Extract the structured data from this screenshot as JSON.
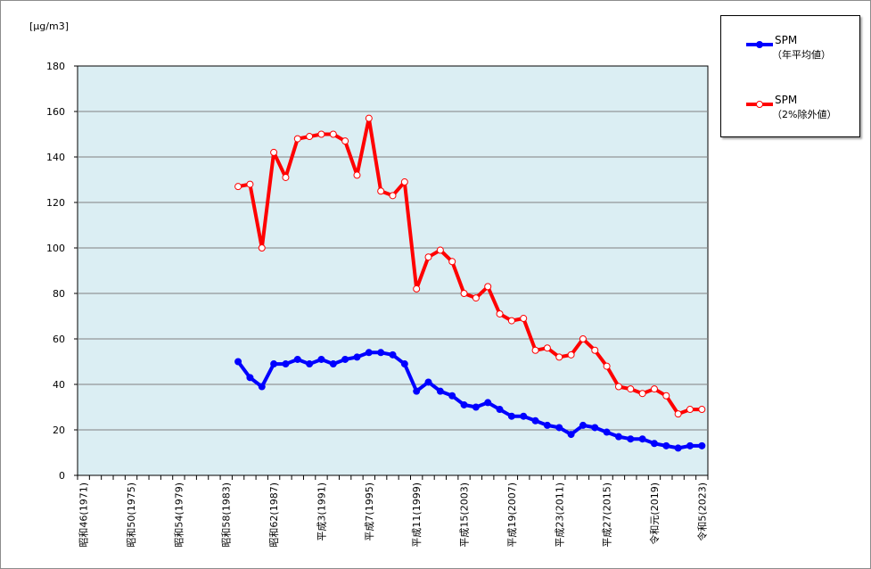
{
  "chart_data": {
    "type": "line",
    "unit_label": "[µg/m3]",
    "ylim": [
      0,
      180
    ],
    "y_ticks": [
      0,
      20,
      40,
      60,
      80,
      100,
      120,
      140,
      160,
      180
    ],
    "grid": true,
    "legend_position": "top-right",
    "x_start_year": 1971,
    "x_end_year": 2023,
    "x_tick_labels": [
      {
        "year": 1971,
        "label": "昭和46(1971)"
      },
      {
        "year": 1975,
        "label": "昭和50(1975)"
      },
      {
        "year": 1979,
        "label": "昭和54(1979)"
      },
      {
        "year": 1983,
        "label": "昭和58(1983)"
      },
      {
        "year": 1987,
        "label": "昭和62(1987)"
      },
      {
        "year": 1991,
        "label": "平成3(1991)"
      },
      {
        "year": 1995,
        "label": "平成7(1995)"
      },
      {
        "year": 1999,
        "label": "平成11(1999)"
      },
      {
        "year": 2003,
        "label": "平成15(2003)"
      },
      {
        "year": 2007,
        "label": "平成19(2007)"
      },
      {
        "year": 2011,
        "label": "平成23(2011)"
      },
      {
        "year": 2015,
        "label": "平成27(2015)"
      },
      {
        "year": 2019,
        "label": "令和元(2019)"
      },
      {
        "year": 2023,
        "label": "令和5(2023)"
      }
    ],
    "series": [
      {
        "name": "SPM",
        "sub": "（年平均値）",
        "color": "#0000ff",
        "marker": "filled",
        "x": [
          1984,
          1985,
          1986,
          1987,
          1988,
          1989,
          1990,
          1991,
          1992,
          1993,
          1994,
          1995,
          1996,
          1997,
          1998,
          1999,
          2000,
          2001,
          2002,
          2003,
          2004,
          2005,
          2006,
          2007,
          2008,
          2009,
          2010,
          2011,
          2012,
          2013,
          2014,
          2015,
          2016,
          2017,
          2018,
          2019,
          2020,
          2021,
          2022,
          2023
        ],
        "values": [
          50,
          43,
          39,
          49,
          49,
          51,
          49,
          51,
          49,
          51,
          52,
          54,
          54,
          53,
          49,
          37,
          41,
          37,
          35,
          31,
          30,
          32,
          29,
          26,
          26,
          24,
          22,
          21,
          18,
          22,
          21,
          19,
          17,
          16,
          16,
          14,
          13,
          12,
          13,
          13
        ]
      },
      {
        "name": "SPM",
        "sub": "（2%除外値）",
        "color": "#ff0000",
        "marker": "hollow",
        "x": [
          1984,
          1985,
          1986,
          1987,
          1988,
          1989,
          1990,
          1991,
          1992,
          1993,
          1994,
          1995,
          1996,
          1997,
          1998,
          1999,
          2000,
          2001,
          2002,
          2003,
          2004,
          2005,
          2006,
          2007,
          2008,
          2009,
          2010,
          2011,
          2012,
          2013,
          2014,
          2015,
          2016,
          2017,
          2018,
          2019,
          2020,
          2021,
          2022,
          2023
        ],
        "values": [
          127,
          128,
          100,
          142,
          131,
          148,
          149,
          150,
          150,
          147,
          132,
          157,
          125,
          123,
          129,
          82,
          96,
          99,
          94,
          80,
          78,
          83,
          71,
          68,
          69,
          55,
          56,
          52,
          53,
          60,
          55,
          48,
          39,
          38,
          36,
          38,
          35,
          27,
          29,
          29
        ]
      }
    ]
  }
}
